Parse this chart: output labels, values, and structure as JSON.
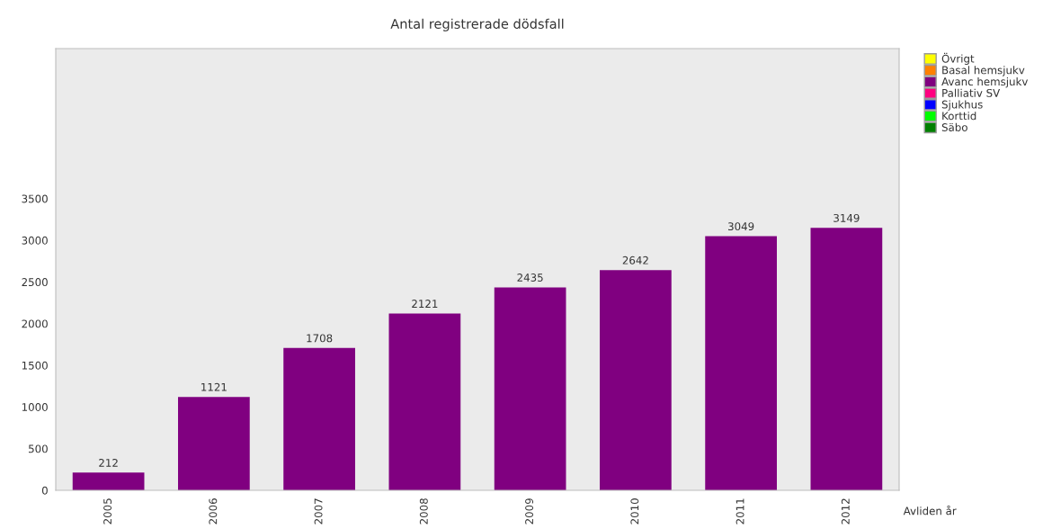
{
  "chart_data": {
    "type": "bar",
    "title": "Antal registrerade dödsfall",
    "xlabel": "Avliden år",
    "categories": [
      "2005",
      "2006",
      "2007",
      "2008",
      "2009",
      "2010",
      "2011",
      "2012"
    ],
    "stacked": true,
    "series": [
      {
        "name": "Säbo",
        "color": "#008000",
        "values": [
          null,
          null,
          null,
          null,
          null,
          null,
          null,
          null
        ]
      },
      {
        "name": "Korttid",
        "color": "#00ff00",
        "values": [
          null,
          null,
          null,
          null,
          null,
          null,
          null,
          null
        ]
      },
      {
        "name": "Sjukhus",
        "color": "#0000ff",
        "values": [
          null,
          null,
          null,
          null,
          null,
          null,
          null,
          null
        ]
      },
      {
        "name": "Palliativ SV",
        "color": "#ff0080",
        "values": [
          null,
          null,
          null,
          null,
          null,
          null,
          null,
          null
        ]
      },
      {
        "name": "Avanc hemsjukv",
        "color": "#800080",
        "values": [
          212,
          1121,
          1708,
          2121,
          2435,
          2642,
          3049,
          3149
        ]
      },
      {
        "name": "Basal hemsjukv",
        "color": "#ff8000",
        "values": [
          null,
          null,
          null,
          null,
          null,
          null,
          null,
          null
        ]
      },
      {
        "name": "Övrigt",
        "color": "#ffff00",
        "values": [
          null,
          null,
          null,
          null,
          null,
          null,
          null,
          null
        ]
      }
    ],
    "ylim": [
      0,
      5300
    ],
    "yticks": [
      0,
      500,
      1000,
      1500,
      2000,
      2500,
      3000,
      3500
    ],
    "data_labels": true,
    "grid": false,
    "legend": "top right"
  }
}
